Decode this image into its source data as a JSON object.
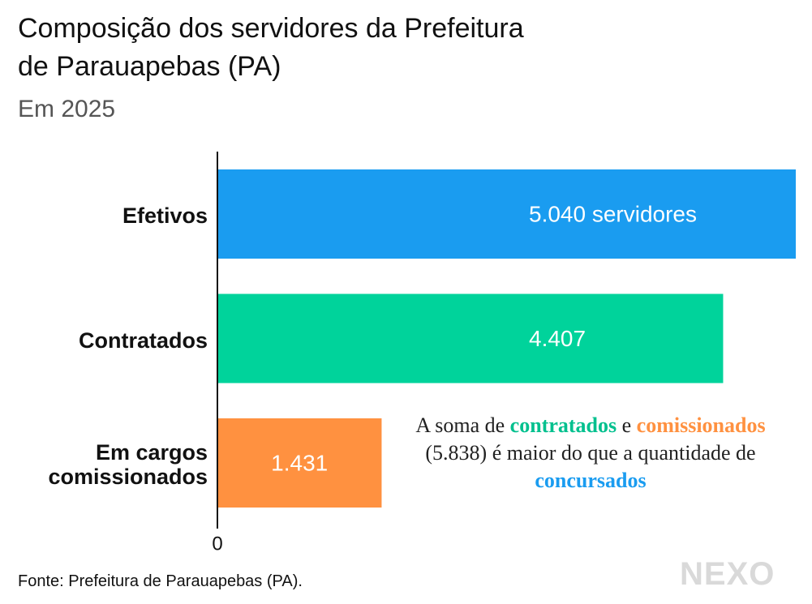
{
  "chart_data": {
    "type": "barh",
    "title": "Composição dos servidores da Prefeitura de Parauapebas (PA)",
    "subtitle": "Em 2025",
    "categories": [
      "Efetivos",
      "Contratados",
      "Em cargos comissionados"
    ],
    "values": [
      5040,
      4407,
      1431
    ],
    "value_labels": [
      "5.040 servidores",
      "4.407",
      "1.431"
    ],
    "colors": [
      "#1a9cf0",
      "#00d39b",
      "#ff9140"
    ],
    "xlim": [
      0,
      5040
    ],
    "xticks": [
      0
    ],
    "annotation": {
      "parts": [
        {
          "text": "A soma de ",
          "color": "#222222"
        },
        {
          "text": "contratados",
          "color": "#00c08e"
        },
        {
          "text": " e ",
          "color": "#222222"
        },
        {
          "text": "comissionados",
          "color": "#ff9140"
        },
        {
          "text": " (5.838) é maior do que a quantidade de ",
          "color": "#222222"
        },
        {
          "text": "concursados",
          "color": "#1a9cf0"
        }
      ]
    },
    "source": "Fonte: Prefeitura de Parauapebas (PA).",
    "logo": "NEXO"
  }
}
